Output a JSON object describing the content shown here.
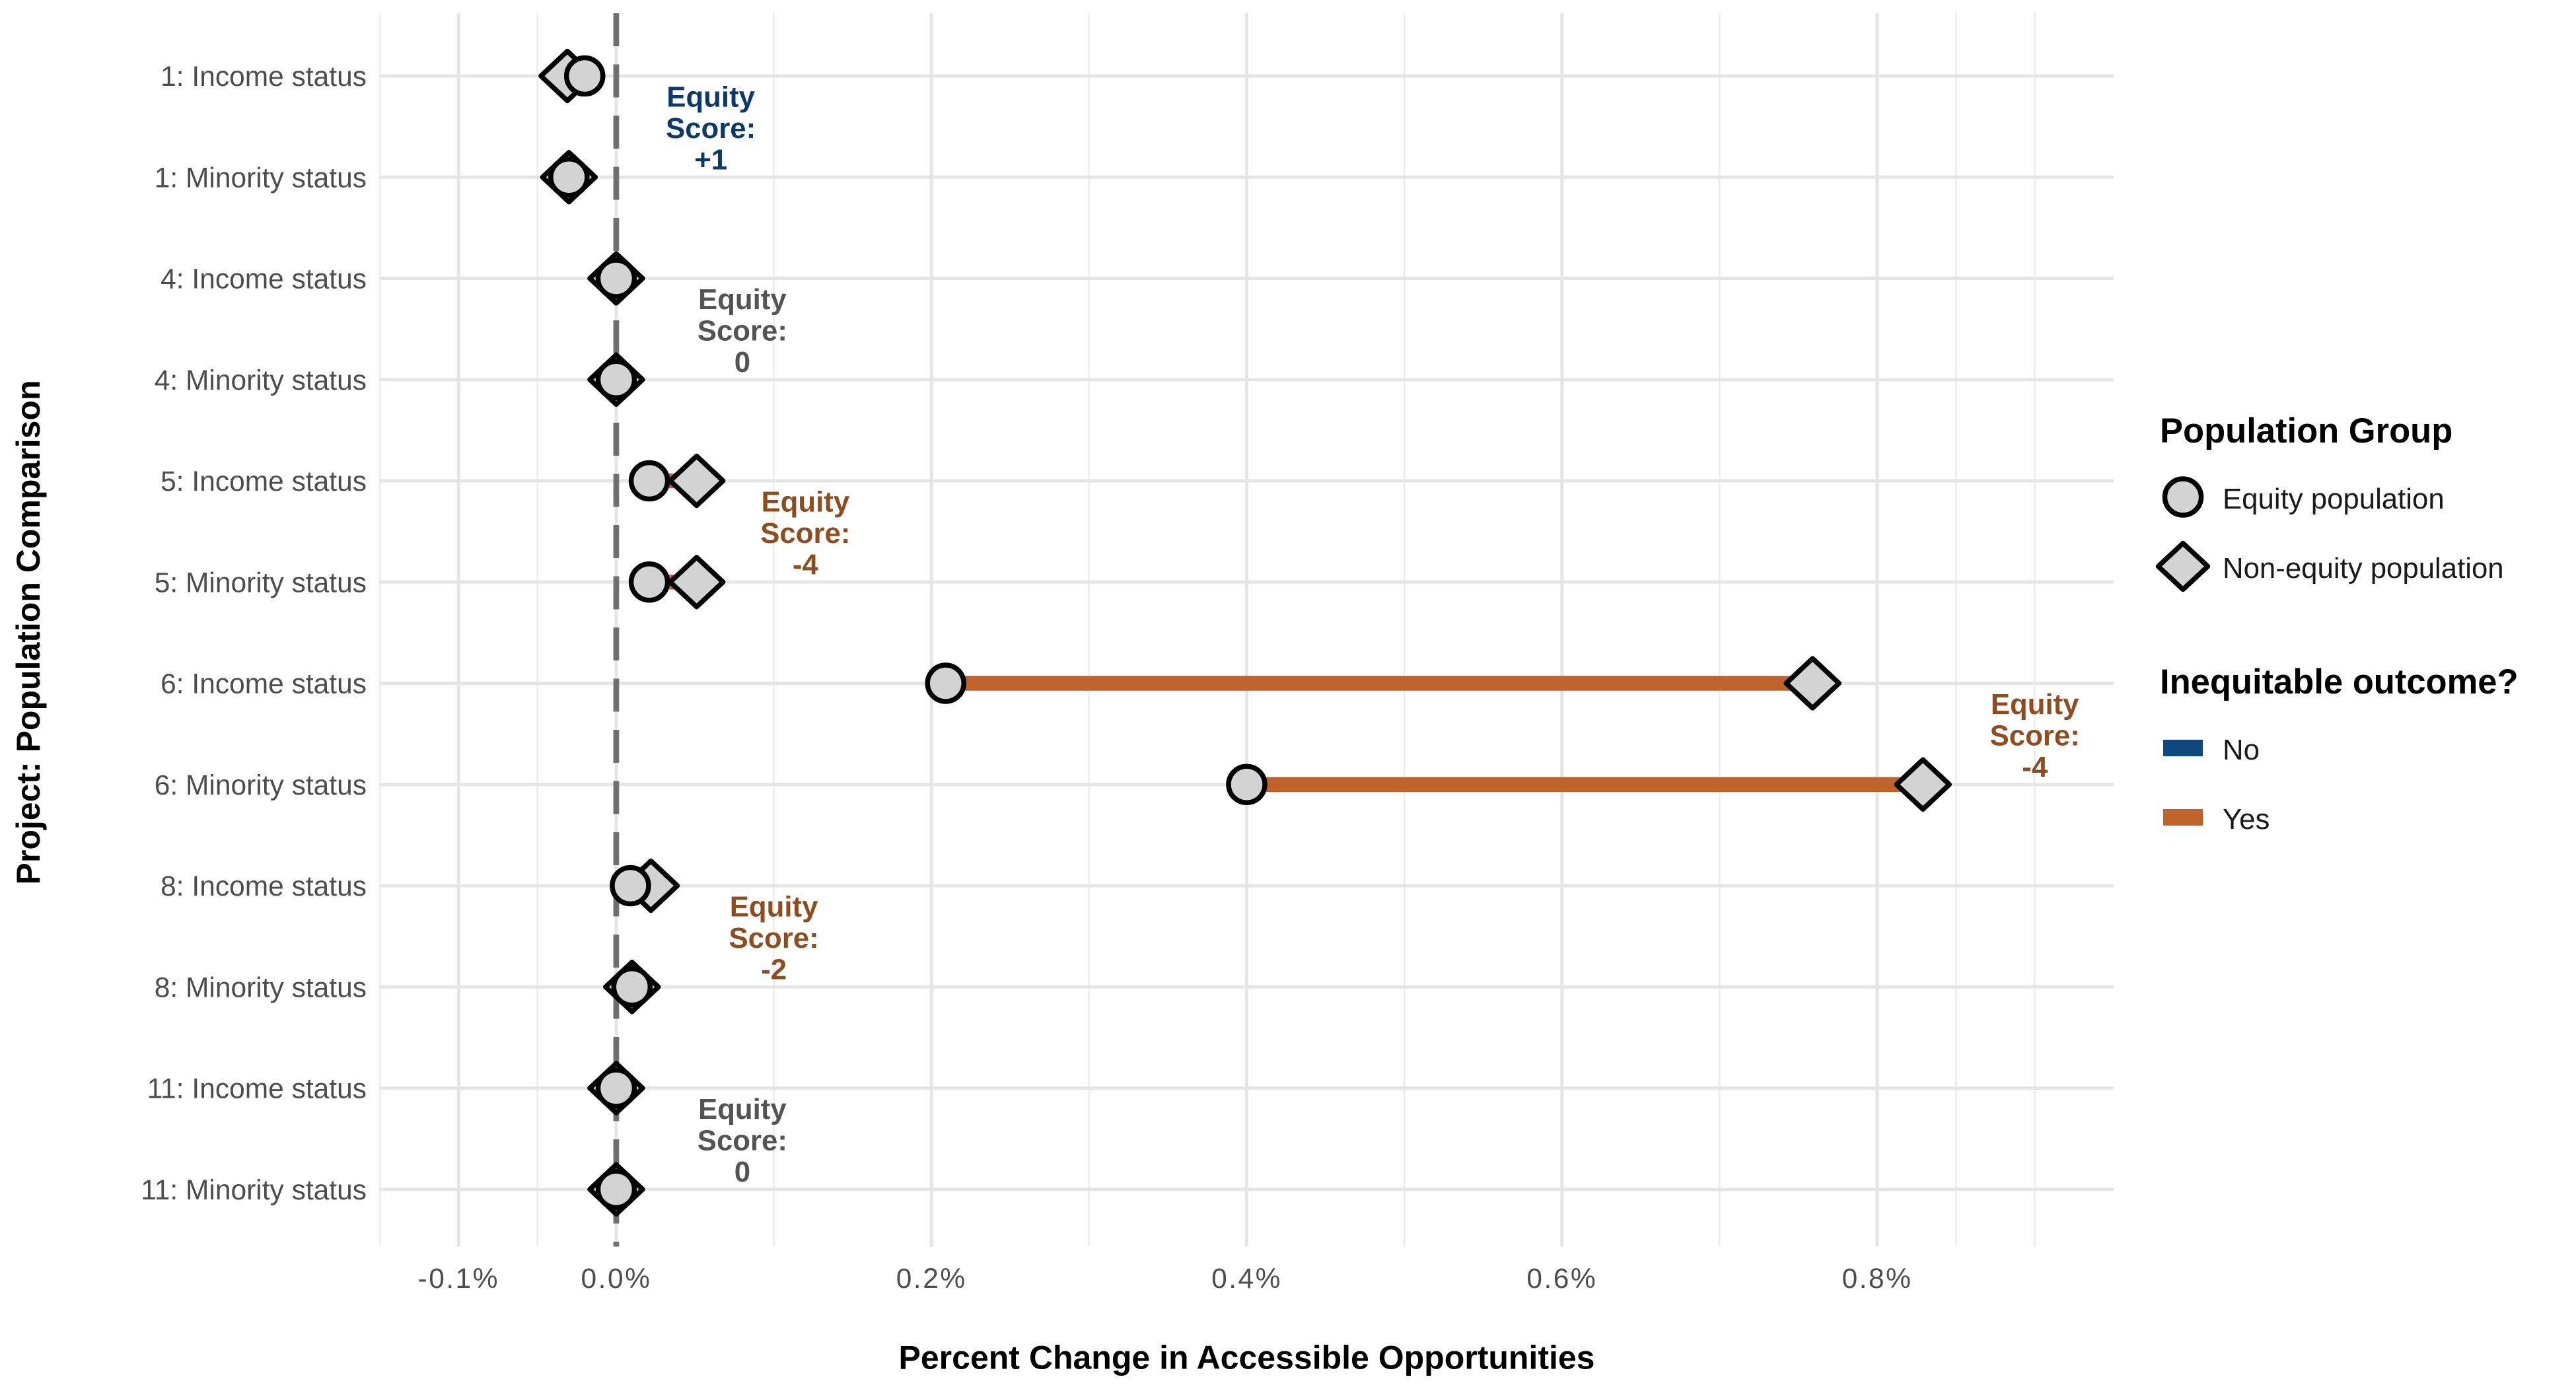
{
  "chart_data": {
    "type": "dumbbell",
    "xlabel": "Percent Change in Accessible Opportunities",
    "ylabel": "Project: Population Comparison",
    "xlim": [
      -0.15,
      0.95
    ],
    "x_ticks": [
      -0.1,
      0.0,
      0.2,
      0.4,
      0.6,
      0.8
    ],
    "x_tick_labels": [
      "-0.1%",
      "0.0%",
      "0.2%",
      "0.4%",
      "0.6%",
      "0.8%"
    ],
    "grid": true,
    "reference_line": {
      "x": 0,
      "style": "dashed",
      "color": "#707070"
    },
    "categories": [
      "1: Income status",
      "1: Minority status",
      "4: Income status",
      "4: Minority status",
      "5: Income status",
      "5: Minority status",
      "6: Income status",
      "6: Minority status",
      "8: Income status",
      "8: Minority status",
      "11: Income status",
      "11: Minority status"
    ],
    "series": [
      {
        "name": "Equity population",
        "shape": "circle",
        "values": [
          -0.02,
          -0.03,
          0.0,
          0.0,
          0.021,
          0.021,
          0.209,
          0.4,
          0.009,
          0.01,
          0.0,
          0.0
        ]
      },
      {
        "name": "Non-equity population",
        "shape": "diamond",
        "values": [
          -0.031,
          -0.03,
          0.0,
          0.0,
          0.051,
          0.051,
          0.759,
          0.829,
          0.022,
          0.01,
          0.0,
          0.0
        ]
      }
    ],
    "inequitable": [
      "No",
      "No",
      "No",
      "No",
      "Yes",
      "Yes",
      "Yes",
      "Yes",
      "Yes",
      "Yes",
      "No",
      "No"
    ],
    "annotations": [
      {
        "lines": [
          "Equity",
          "Score:",
          "+1"
        ],
        "x": 0.06,
        "row": 0.5,
        "color": "#0b3a68"
      },
      {
        "lines": [
          "Equity",
          "Score:",
          "0"
        ],
        "x": 0.08,
        "row": 2.5,
        "color": "#545454"
      },
      {
        "lines": [
          "Equity",
          "Score:",
          "-4"
        ],
        "x": 0.12,
        "row": 4.5,
        "color": "#8e4c1f"
      },
      {
        "lines": [
          "Equity",
          "Score:",
          "-4"
        ],
        "x": 0.9,
        "row": 6.5,
        "color": "#8e4c1f"
      },
      {
        "lines": [
          "Equity",
          "Score:",
          "-2"
        ],
        "x": 0.1,
        "row": 8.5,
        "color": "#8e4c1f"
      },
      {
        "lines": [
          "Equity",
          "Score:",
          "0"
        ],
        "x": 0.08,
        "row": 10.5,
        "color": "#545454"
      }
    ],
    "legend": {
      "placement": "right",
      "population_group": {
        "title": "Population Group",
        "items": [
          "Equity population",
          "Non-equity population"
        ]
      },
      "inequitable_outcome": {
        "title": "Inequitable outcome?",
        "items": [
          {
            "label": "No",
            "color": "#0e4a80"
          },
          {
            "label": "Yes",
            "color": "#c0622b"
          }
        ]
      }
    },
    "marker_fill": "#d3d3d3"
  }
}
